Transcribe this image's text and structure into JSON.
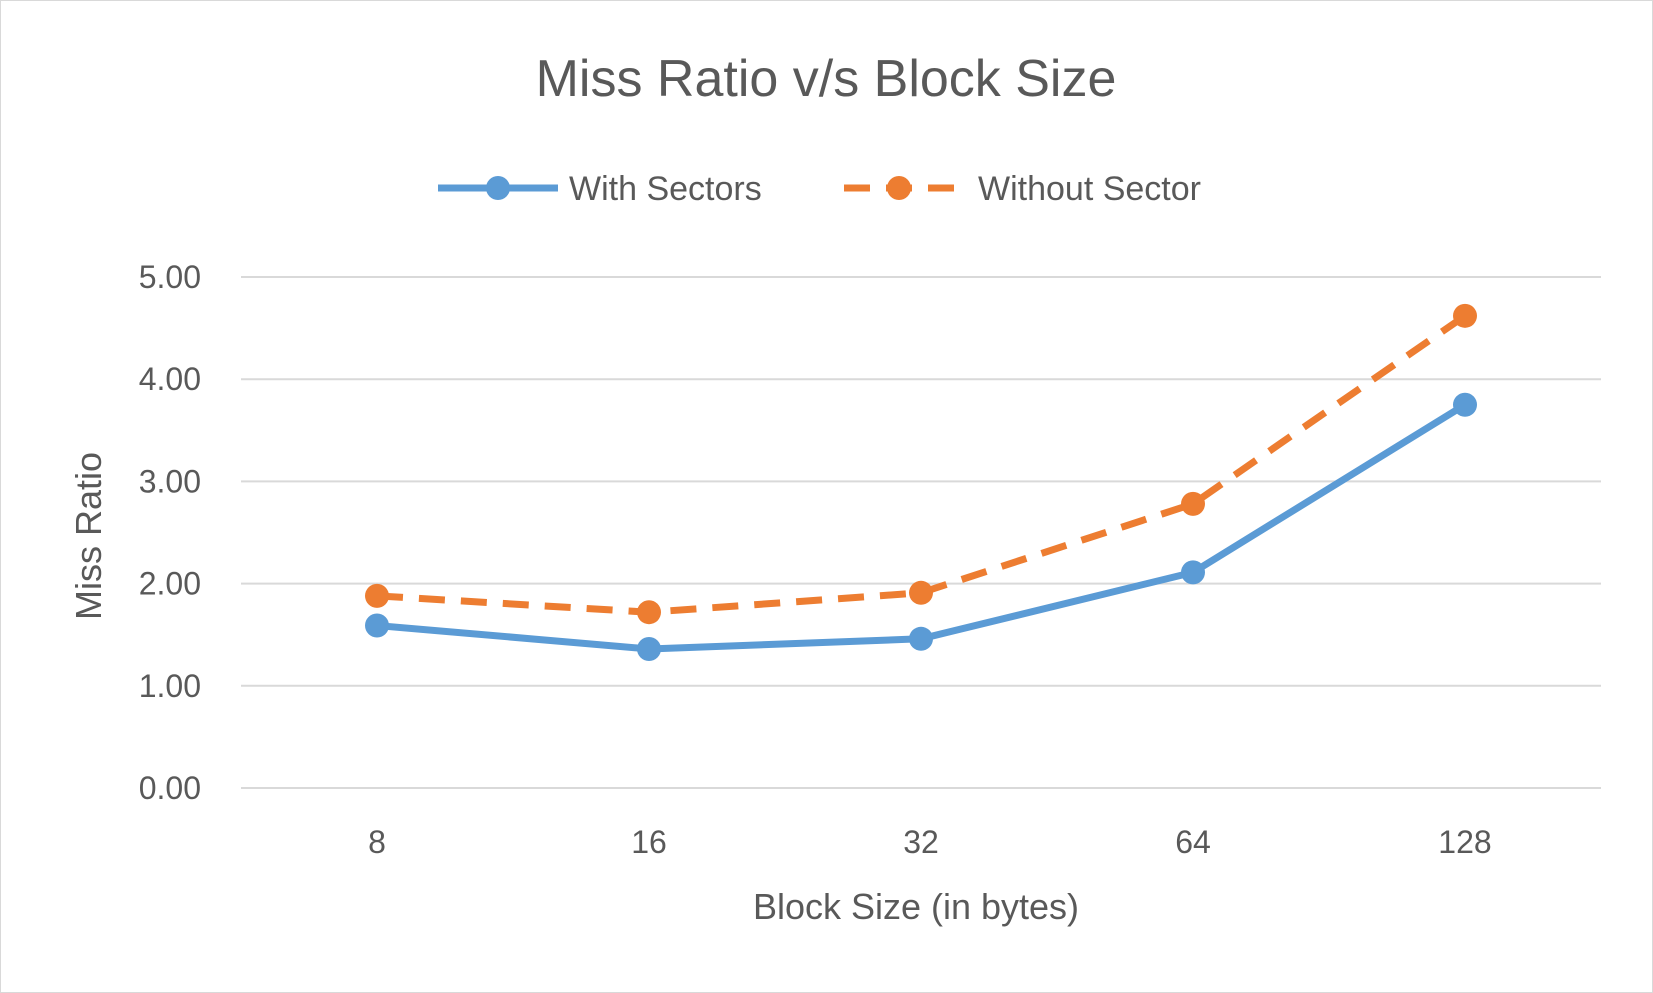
{
  "chart_data": {
    "type": "line",
    "title": "Miss Ratio v/s Block Size",
    "xlabel": "Block Size (in bytes)",
    "ylabel": "Miss Ratio",
    "categories": [
      "8",
      "16",
      "32",
      "64",
      "128"
    ],
    "ylim": [
      0,
      5
    ],
    "yticks": [
      "0.00",
      "1.00",
      "2.00",
      "3.00",
      "4.00",
      "5.00"
    ],
    "grid": true,
    "legend_position": "top",
    "series": [
      {
        "name": "With Sectors",
        "values": [
          1.59,
          1.36,
          1.46,
          2.11,
          3.75
        ],
        "color": "#5b9bd5",
        "line_style": "solid"
      },
      {
        "name": "Without Sector",
        "values": [
          1.88,
          1.72,
          1.91,
          2.78,
          4.62
        ],
        "color": "#ed7d31",
        "line_style": "dashed"
      }
    ]
  }
}
